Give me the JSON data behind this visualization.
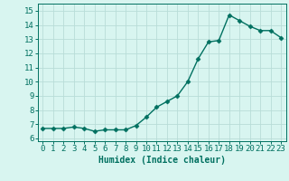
{
  "x": [
    0,
    1,
    2,
    3,
    4,
    5,
    6,
    7,
    8,
    9,
    10,
    11,
    12,
    13,
    14,
    15,
    16,
    17,
    18,
    19,
    20,
    21,
    22,
    23
  ],
  "y": [
    6.7,
    6.7,
    6.7,
    6.8,
    6.7,
    6.5,
    6.6,
    6.6,
    6.6,
    6.9,
    7.5,
    8.2,
    8.6,
    9.0,
    10.0,
    11.6,
    12.8,
    12.9,
    14.7,
    14.3,
    13.9,
    13.6,
    13.6,
    13.1
  ],
  "line_color": "#007060",
  "marker": "D",
  "markersize": 2.5,
  "linewidth": 1.0,
  "background_color": "#d8f5f0",
  "grid_color": "#b8ddd8",
  "xlabel": "Humidex (Indice chaleur)",
  "xlabel_fontsize": 7,
  "ylabel_ticks": [
    6,
    7,
    8,
    9,
    10,
    11,
    12,
    13,
    14,
    15
  ],
  "ylim": [
    5.8,
    15.5
  ],
  "xlim": [
    -0.5,
    23.5
  ],
  "tick_fontsize": 6.5
}
